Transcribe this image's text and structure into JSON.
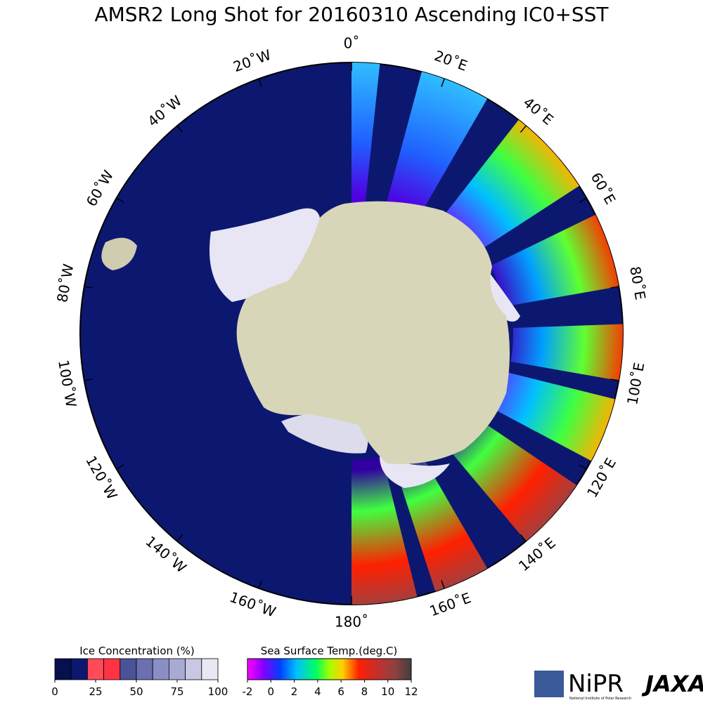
{
  "title": "AMSR2 Long Shot for 20160310 Ascending IC0+SST",
  "longitude_labels": [
    "0˚",
    "20˚E",
    "40˚E",
    "60˚E",
    "80˚E",
    "100˚E",
    "120˚E",
    "140˚E",
    "160˚E",
    "180˚",
    "160˚W",
    "140˚W",
    "120˚W",
    "100˚W",
    "80˚W",
    "60˚W",
    "40˚W",
    "20˚W"
  ],
  "ice_legend": {
    "title": "Ice Concentration (%)",
    "ticks": [
      0,
      25,
      50,
      75,
      100
    ]
  },
  "sst_legend": {
    "title": "Sea Surface Temp.(deg.C)",
    "ticks": [
      -2,
      0,
      2,
      4,
      6,
      8,
      10,
      12
    ]
  },
  "logos": {
    "nipr": "NiPR",
    "nipr_full": "National Institute of Polar Research",
    "jaxa": "JAXA"
  }
}
